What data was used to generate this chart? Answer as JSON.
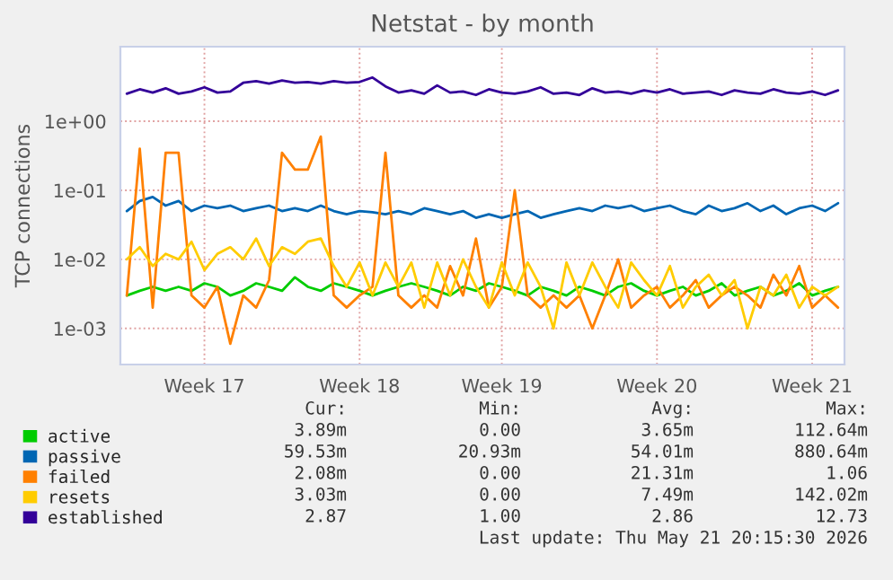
{
  "chart_data": {
    "type": "line",
    "title": "Netstat - by month",
    "ylabel": "TCP connections",
    "log": "y",
    "grid": true,
    "legend": "bottom left",
    "marker": "none",
    "line_style": "solid",
    "categories": [
      null,
      null,
      null,
      null,
      null,
      null,
      "Week 17",
      null,
      null,
      null,
      null,
      null,
      null,
      null,
      null,
      null,
      null,
      null,
      "Week 18",
      null,
      null,
      null,
      null,
      null,
      null,
      null,
      null,
      null,
      null,
      "Week 19",
      null,
      null,
      null,
      null,
      null,
      null,
      null,
      null,
      null,
      null,
      null,
      "Week 20",
      null,
      null,
      null,
      null,
      null,
      null,
      null,
      null,
      null,
      null,
      null,
      "Week 21",
      null,
      null
    ],
    "ylim": [
      0.0003,
      12
    ],
    "yticks": [
      {
        "value": 0.001,
        "label": "1e-03"
      },
      {
        "value": 0.01,
        "label": "1e-02"
      },
      {
        "value": 0.1,
        "label": "1e-01"
      },
      {
        "value": 1,
        "label": "1e+00"
      }
    ],
    "series": [
      {
        "name": "active",
        "color": "#00cc00",
        "values": [
          0.003,
          0.0035,
          0.004,
          0.0035,
          0.004,
          0.0035,
          0.0045,
          0.004,
          0.003,
          0.0035,
          0.0045,
          0.004,
          0.0035,
          0.0055,
          0.004,
          0.0035,
          0.0045,
          0.004,
          0.0035,
          0.003,
          0.0035,
          0.004,
          0.0045,
          0.004,
          0.0035,
          0.003,
          0.004,
          0.0035,
          0.0045,
          0.004,
          0.0035,
          0.003,
          0.004,
          0.0035,
          0.003,
          0.004,
          0.0035,
          0.003,
          0.004,
          0.0045,
          0.0035,
          0.003,
          0.0035,
          0.004,
          0.003,
          0.0035,
          0.0045,
          0.003,
          0.0035,
          0.004,
          0.003,
          0.0035,
          0.0045,
          0.003,
          0.0035,
          0.004
        ]
      },
      {
        "name": "passive",
        "color": "#0066b3",
        "values": [
          0.05,
          0.07,
          0.08,
          0.06,
          0.07,
          0.05,
          0.06,
          0.055,
          0.06,
          0.05,
          0.055,
          0.06,
          0.05,
          0.055,
          0.05,
          0.06,
          0.05,
          0.045,
          0.05,
          0.048,
          0.045,
          0.05,
          0.045,
          0.055,
          0.05,
          0.045,
          0.05,
          0.04,
          0.045,
          0.04,
          0.045,
          0.05,
          0.04,
          0.045,
          0.05,
          0.055,
          0.05,
          0.06,
          0.055,
          0.06,
          0.05,
          0.055,
          0.06,
          0.05,
          0.045,
          0.06,
          0.05,
          0.055,
          0.065,
          0.05,
          0.06,
          0.045,
          0.055,
          0.06,
          0.05,
          0.065
        ]
      },
      {
        "name": "failed",
        "color": "#ff8000",
        "values": [
          0.003,
          0.4,
          0.002,
          0.35,
          0.35,
          0.003,
          0.002,
          0.004,
          0.0006,
          0.003,
          0.002,
          0.005,
          0.35,
          0.2,
          0.2,
          0.6,
          0.003,
          0.002,
          0.003,
          0.004,
          0.35,
          0.003,
          0.002,
          0.003,
          0.002,
          0.008,
          0.003,
          0.02,
          0.002,
          0.004,
          0.1,
          0.003,
          0.002,
          0.003,
          0.002,
          0.003,
          0.001,
          0.003,
          0.01,
          0.002,
          0.003,
          0.004,
          0.002,
          0.003,
          0.005,
          0.002,
          0.003,
          0.004,
          0.003,
          0.002,
          0.006,
          0.003,
          0.008,
          0.002,
          0.003,
          0.002
        ]
      },
      {
        "name": "resets",
        "color": "#ffcc00",
        "values": [
          0.01,
          0.015,
          0.008,
          0.012,
          0.01,
          0.018,
          0.007,
          0.012,
          0.015,
          0.01,
          0.02,
          0.008,
          0.015,
          0.012,
          0.018,
          0.02,
          0.008,
          0.004,
          0.009,
          0.003,
          0.009,
          0.004,
          0.009,
          0.002,
          0.009,
          0.003,
          0.01,
          0.004,
          0.002,
          0.009,
          0.003,
          0.009,
          0.004,
          0.001,
          0.009,
          0.003,
          0.009,
          0.004,
          0.002,
          0.009,
          0.005,
          0.003,
          0.008,
          0.002,
          0.004,
          0.006,
          0.003,
          0.005,
          0.001,
          0.004,
          0.003,
          0.006,
          0.002,
          0.004,
          0.003,
          0.004
        ]
      },
      {
        "name": "established",
        "color": "#330099",
        "values": [
          2.5,
          2.9,
          2.6,
          3.0,
          2.5,
          2.7,
          3.1,
          2.6,
          2.7,
          3.6,
          3.8,
          3.5,
          3.9,
          3.6,
          3.7,
          3.5,
          3.8,
          3.6,
          3.7,
          4.3,
          3.2,
          2.6,
          2.8,
          2.5,
          3.3,
          2.6,
          2.7,
          2.4,
          2.9,
          2.6,
          2.5,
          2.7,
          3.1,
          2.5,
          2.6,
          2.4,
          3.0,
          2.6,
          2.7,
          2.5,
          2.8,
          2.6,
          2.9,
          2.5,
          2.6,
          2.7,
          2.4,
          2.8,
          2.6,
          2.5,
          2.9,
          2.6,
          2.5,
          2.7,
          2.4,
          2.8
        ]
      }
    ],
    "annotations": [
      "Cur:",
      "Min:",
      "Avg:",
      "Max:",
      "3.89m",
      "0.00",
      "3.65m",
      "112.64m",
      "59.53m",
      "20.93m",
      "54.01m",
      "880.64m",
      "2.08m",
      "0.00",
      "21.31m",
      "1.06",
      "3.03m",
      "0.00",
      "7.49m",
      "142.02m",
      "2.87",
      "1.00",
      "2.86",
      "12.73",
      "Last update: Thu May 21 20:15:30 2026"
    ]
  }
}
